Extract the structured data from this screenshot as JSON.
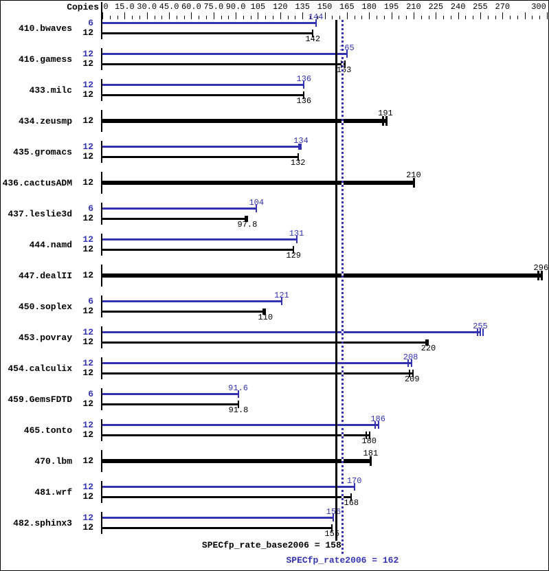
{
  "header": {
    "copies_label": "Copies"
  },
  "colors": {
    "peak_blue": "#3333b2",
    "base_black": "#000000",
    "background": "#ffffff"
  },
  "axis": {
    "min": 0,
    "max": 300,
    "major_step": 15,
    "minor_step": 5,
    "ticks": [
      {
        "v": 0,
        "t": "0"
      },
      {
        "v": 15,
        "t": "15.0"
      },
      {
        "v": 30,
        "t": "30.0"
      },
      {
        "v": 45,
        "t": "45.0"
      },
      {
        "v": 60,
        "t": "60.0"
      },
      {
        "v": 75,
        "t": "75.0"
      },
      {
        "v": 90,
        "t": "90.0"
      },
      {
        "v": 105,
        "t": "105"
      },
      {
        "v": 120,
        "t": "120"
      },
      {
        "v": 135,
        "t": "135"
      },
      {
        "v": 150,
        "t": "150"
      },
      {
        "v": 165,
        "t": "165"
      },
      {
        "v": 180,
        "t": "180"
      },
      {
        "v": 195,
        "t": "195"
      },
      {
        "v": 210,
        "t": "210"
      },
      {
        "v": 225,
        "t": "225"
      },
      {
        "v": 240,
        "t": "240"
      },
      {
        "v": 255,
        "t": "255"
      },
      {
        "v": 270,
        "t": "270"
      },
      {
        "v": 300,
        "t": "300"
      }
    ]
  },
  "summary": {
    "base_label": "SPECfp_rate_base2006 = 158",
    "base_value": 158,
    "peak_label": "SPECfp_rate2006 = 162",
    "peak_value": 162
  },
  "chart_data": {
    "type": "bar",
    "orientation": "horizontal",
    "xlim": [
      0,
      300
    ],
    "series_meaning": {
      "peak": "blue top bar",
      "base": "black bottom bar; thick single bar when no peak run"
    },
    "benchmarks": [
      {
        "name": "410.bwaves",
        "peak": {
          "copies": 6,
          "value": 144,
          "label": "144",
          "marker": "single"
        },
        "base": {
          "copies": 12,
          "value": 142,
          "label": "142",
          "marker": "single"
        }
      },
      {
        "name": "416.gamess",
        "peak": {
          "copies": 12,
          "value": 165,
          "label": "165",
          "marker": "single"
        },
        "base": {
          "copies": 12,
          "value": 163,
          "label": "163",
          "marker": "double"
        }
      },
      {
        "name": "433.milc",
        "peak": {
          "copies": 12,
          "value": 136,
          "label": "136",
          "marker": "single"
        },
        "base": {
          "copies": 12,
          "value": 136,
          "label": "136",
          "marker": "single"
        }
      },
      {
        "name": "434.zeusmp",
        "peak": null,
        "base": {
          "copies": 12,
          "value": 191,
          "label": "191",
          "marker": "double"
        }
      },
      {
        "name": "435.gromacs",
        "peak": {
          "copies": 12,
          "value": 134,
          "label": "134",
          "marker": "square"
        },
        "base": {
          "copies": 12,
          "value": 132,
          "label": "132",
          "marker": "single"
        }
      },
      {
        "name": "436.cactusADM",
        "peak": null,
        "base": {
          "copies": 12,
          "value": 210,
          "label": "210",
          "marker": "single"
        }
      },
      {
        "name": "437.leslie3d",
        "peak": {
          "copies": 6,
          "value": 104,
          "label": "104",
          "marker": "single"
        },
        "base": {
          "copies": 12,
          "value": 97.8,
          "label": "97.8",
          "marker": "square"
        }
      },
      {
        "name": "444.namd",
        "peak": {
          "copies": 12,
          "value": 131,
          "label": "131",
          "marker": "single"
        },
        "base": {
          "copies": 12,
          "value": 129,
          "label": "129",
          "marker": "single"
        }
      },
      {
        "name": "447.dealII",
        "peak": null,
        "base": {
          "copies": 12,
          "value": 296,
          "label": "296",
          "marker": "double"
        }
      },
      {
        "name": "450.soplex",
        "peak": {
          "copies": 6,
          "value": 121,
          "label": "121",
          "marker": "single"
        },
        "base": {
          "copies": 12,
          "value": 110,
          "label": "110",
          "marker": "square"
        }
      },
      {
        "name": "453.povray",
        "peak": {
          "copies": 12,
          "value": 255,
          "label": "255",
          "marker": "triple"
        },
        "base": {
          "copies": 12,
          "value": 220,
          "label": "220",
          "marker": "square"
        }
      },
      {
        "name": "454.calculix",
        "peak": {
          "copies": 12,
          "value": 208,
          "label": "208",
          "marker": "double"
        },
        "base": {
          "copies": 12,
          "value": 209,
          "label": "209",
          "marker": "double"
        }
      },
      {
        "name": "459.GemsFDTD",
        "peak": {
          "copies": 6,
          "value": 91.6,
          "label": "91.6",
          "marker": "single"
        },
        "base": {
          "copies": 12,
          "value": 91.8,
          "label": "91.8",
          "marker": "single"
        }
      },
      {
        "name": "465.tonto",
        "peak": {
          "copies": 12,
          "value": 186,
          "label": "186",
          "marker": "double"
        },
        "base": {
          "copies": 12,
          "value": 180,
          "label": "180",
          "marker": "double"
        }
      },
      {
        "name": "470.lbm",
        "peak": null,
        "base": {
          "copies": 12,
          "value": 181,
          "label": "181",
          "marker": "single"
        }
      },
      {
        "name": "481.wrf",
        "peak": {
          "copies": 12,
          "value": 170,
          "label": "170",
          "marker": "single"
        },
        "base": {
          "copies": 12,
          "value": 168,
          "label": "168",
          "marker": "single"
        }
      },
      {
        "name": "482.sphinx3",
        "peak": {
          "copies": 12,
          "value": 156,
          "label": "156",
          "marker": "single"
        },
        "base": {
          "copies": 12,
          "value": 155,
          "label": "155",
          "marker": "single"
        }
      }
    ]
  }
}
